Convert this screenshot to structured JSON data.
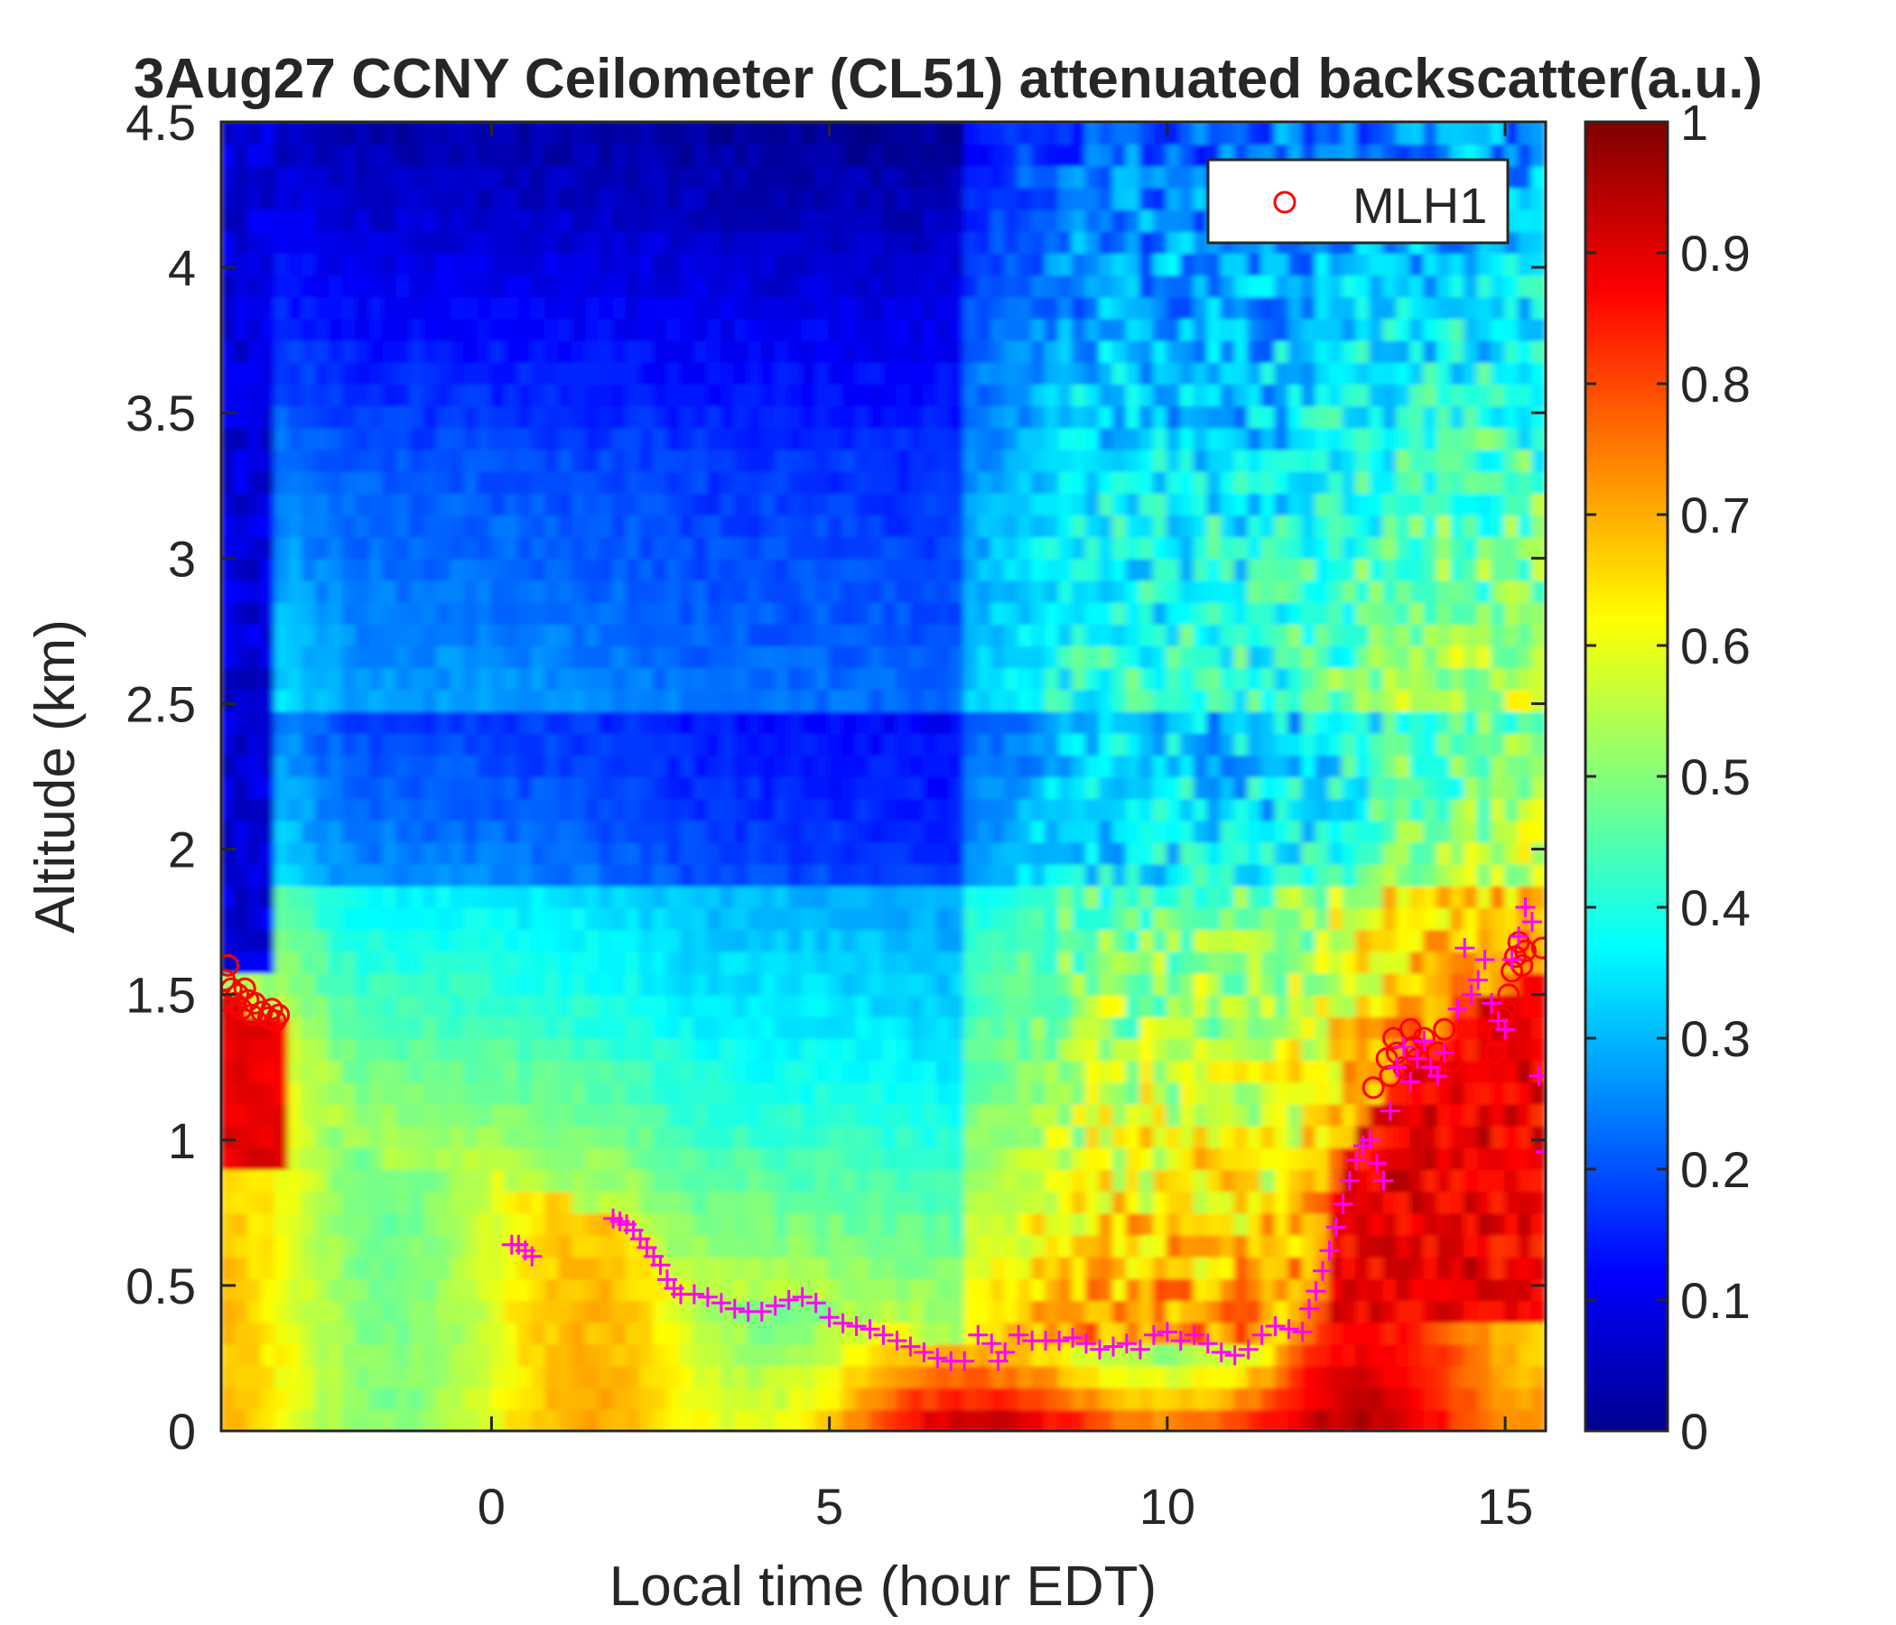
{
  "chart_data": {
    "type": "heatmap",
    "title": "3Aug27 CCNY Ceilometer (CL51) attenuated backscatter(a.u.)",
    "xlabel": "Local time (hour EDT)",
    "ylabel": "Altitude (km)",
    "xlim": [
      -4,
      15.6
    ],
    "ylim": [
      0,
      4.5
    ],
    "xticks": [
      "0",
      "5",
      "10",
      "15"
    ],
    "xtick_values": [
      0,
      5,
      10,
      15
    ],
    "yticks": [
      "0",
      "0.5",
      "1",
      "1.5",
      "2",
      "2.5",
      "3",
      "3.5",
      "4",
      "4.5"
    ],
    "ytick_values": [
      0,
      0.5,
      1,
      1.5,
      2,
      2.5,
      3,
      3.5,
      4,
      4.5
    ],
    "colorbar": {
      "colormap": "jet",
      "range": [
        0,
        1
      ],
      "ticks": [
        "0",
        "0.1",
        "0.2",
        "0.3",
        "0.4",
        "0.5",
        "0.6",
        "0.7",
        "0.8",
        "0.9",
        "1"
      ],
      "tick_values": [
        0,
        0.1,
        0.2,
        0.3,
        0.4,
        0.5,
        0.6,
        0.7,
        0.8,
        0.9,
        1
      ]
    },
    "legend": {
      "position": "top-right",
      "entries": [
        {
          "label": "MLH1",
          "marker": "circle",
          "color": "#ff0000"
        }
      ]
    },
    "series": [
      {
        "marker": "circle",
        "color": "#ff0000",
        "points": [
          [
            -4.0,
            1.48
          ],
          [
            -3.95,
            1.55
          ],
          [
            -3.9,
            1.6
          ],
          [
            -3.85,
            1.52
          ],
          [
            -3.8,
            1.47
          ],
          [
            -3.75,
            1.5
          ],
          [
            -3.7,
            1.45
          ],
          [
            -3.65,
            1.52
          ],
          [
            -3.6,
            1.48
          ],
          [
            -3.55,
            1.43
          ],
          [
            -3.5,
            1.47
          ],
          [
            -3.4,
            1.44
          ],
          [
            -3.3,
            1.42
          ],
          [
            -3.25,
            1.45
          ],
          [
            -3.2,
            1.41
          ],
          [
            -3.15,
            1.43
          ],
          [
            13.05,
            1.18
          ],
          [
            13.25,
            1.28
          ],
          [
            13.3,
            1.22
          ],
          [
            13.35,
            1.35
          ],
          [
            13.4,
            1.3
          ],
          [
            13.5,
            1.25
          ],
          [
            13.6,
            1.38
          ],
          [
            13.65,
            1.32
          ],
          [
            13.7,
            1.28
          ],
          [
            13.8,
            1.35
          ],
          [
            14.0,
            1.3
          ],
          [
            14.1,
            1.38
          ],
          [
            14.2,
            1.27
          ],
          [
            14.85,
            1.3
          ],
          [
            14.9,
            1.36
          ],
          [
            14.95,
            1.42
          ],
          [
            15.0,
            1.45
          ],
          [
            15.05,
            1.5
          ],
          [
            15.1,
            1.58
          ],
          [
            15.15,
            1.63
          ],
          [
            15.2,
            1.68
          ],
          [
            15.25,
            1.6
          ],
          [
            15.3,
            1.65
          ],
          [
            15.55,
            1.66
          ]
        ]
      },
      {
        "marker": "plus",
        "color": "#ff00ff",
        "points": [
          [
            0.3,
            0.64
          ],
          [
            0.4,
            0.64
          ],
          [
            0.5,
            0.62
          ],
          [
            0.6,
            0.6
          ],
          [
            1.8,
            0.73
          ],
          [
            1.9,
            0.72
          ],
          [
            2.0,
            0.71
          ],
          [
            2.1,
            0.69
          ],
          [
            2.2,
            0.66
          ],
          [
            2.3,
            0.63
          ],
          [
            2.4,
            0.6
          ],
          [
            2.5,
            0.57
          ],
          [
            2.6,
            0.52
          ],
          [
            2.7,
            0.49
          ],
          [
            2.8,
            0.47
          ],
          [
            3.0,
            0.47
          ],
          [
            3.2,
            0.46
          ],
          [
            3.4,
            0.44
          ],
          [
            3.6,
            0.42
          ],
          [
            3.8,
            0.41
          ],
          [
            4.0,
            0.41
          ],
          [
            4.2,
            0.43
          ],
          [
            4.4,
            0.45
          ],
          [
            4.6,
            0.46
          ],
          [
            4.8,
            0.44
          ],
          [
            5.0,
            0.39
          ],
          [
            5.2,
            0.37
          ],
          [
            5.4,
            0.36
          ],
          [
            5.6,
            0.35
          ],
          [
            5.8,
            0.33
          ],
          [
            6.0,
            0.31
          ],
          [
            6.2,
            0.29
          ],
          [
            6.4,
            0.27
          ],
          [
            6.6,
            0.25
          ],
          [
            6.8,
            0.24
          ],
          [
            7.0,
            0.24
          ],
          [
            7.2,
            0.33
          ],
          [
            7.4,
            0.3
          ],
          [
            7.5,
            0.24
          ],
          [
            7.6,
            0.27
          ],
          [
            7.8,
            0.33
          ],
          [
            8.0,
            0.31
          ],
          [
            8.2,
            0.31
          ],
          [
            8.4,
            0.31
          ],
          [
            8.6,
            0.32
          ],
          [
            8.8,
            0.3
          ],
          [
            9.0,
            0.28
          ],
          [
            9.2,
            0.29
          ],
          [
            9.4,
            0.3
          ],
          [
            9.6,
            0.28
          ],
          [
            9.8,
            0.33
          ],
          [
            10.0,
            0.34
          ],
          [
            10.2,
            0.31
          ],
          [
            10.4,
            0.33
          ],
          [
            10.6,
            0.3
          ],
          [
            10.8,
            0.27
          ],
          [
            11.0,
            0.26
          ],
          [
            11.2,
            0.28
          ],
          [
            11.4,
            0.33
          ],
          [
            11.6,
            0.36
          ],
          [
            11.8,
            0.35
          ],
          [
            12.0,
            0.34
          ],
          [
            12.1,
            0.42
          ],
          [
            12.2,
            0.48
          ],
          [
            12.3,
            0.55
          ],
          [
            12.4,
            0.62
          ],
          [
            12.5,
            0.7
          ],
          [
            12.6,
            0.78
          ],
          [
            12.7,
            0.86
          ],
          [
            12.8,
            0.93
          ],
          [
            12.9,
            0.98
          ],
          [
            13.0,
            1.0
          ],
          [
            13.1,
            0.92
          ],
          [
            13.2,
            0.86
          ],
          [
            13.3,
            1.1
          ],
          [
            13.4,
            1.25
          ],
          [
            13.5,
            1.32
          ],
          [
            13.6,
            1.2
          ],
          [
            13.7,
            1.28
          ],
          [
            13.8,
            1.34
          ],
          [
            13.9,
            1.25
          ],
          [
            14.0,
            1.22
          ],
          [
            14.1,
            1.3
          ],
          [
            14.3,
            1.45
          ],
          [
            14.4,
            1.66
          ],
          [
            14.5,
            1.5
          ],
          [
            14.6,
            1.55
          ],
          [
            14.7,
            1.62
          ],
          [
            14.8,
            1.47
          ],
          [
            14.9,
            1.41
          ],
          [
            15.0,
            1.38
          ],
          [
            15.1,
            1.62
          ],
          [
            15.2,
            1.7
          ],
          [
            15.3,
            1.8
          ],
          [
            15.4,
            1.75
          ],
          [
            15.5,
            1.22
          ],
          [
            15.6,
            0.96
          ]
        ]
      }
    ]
  }
}
